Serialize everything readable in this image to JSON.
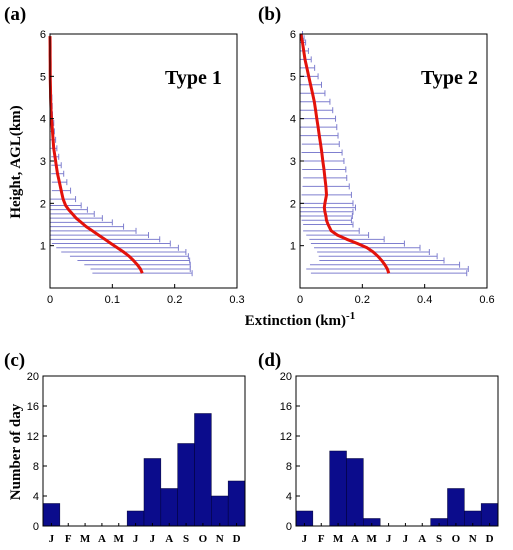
{
  "chart_data": [
    {
      "panel": "(a)",
      "type": "line",
      "title": "Type 1",
      "xlim": [
        0,
        0.3
      ],
      "ylim": [
        0,
        6
      ],
      "xticks": [
        "0",
        "0.1",
        "0.2",
        "0.3"
      ],
      "yticks": [
        "1",
        "2",
        "3",
        "4",
        "5",
        "6"
      ],
      "x": [
        0.148,
        0.145,
        0.14,
        0.134,
        0.127,
        0.118,
        0.108,
        0.098,
        0.088,
        0.078,
        0.068,
        0.058,
        0.05,
        0.042,
        0.036,
        0.03,
        0.025,
        0.021,
        0.018,
        0.015,
        0.012,
        0.01,
        0.008,
        0.006,
        0.005,
        0.004,
        0.003,
        0.002,
        0.0015,
        0.001,
        0.0008,
        0.0005,
        0.0004,
        0.0003,
        0.0002,
        0.0001,
        0.0
      ],
      "y": [
        0.35,
        0.45,
        0.55,
        0.65,
        0.75,
        0.85,
        0.95,
        1.05,
        1.15,
        1.25,
        1.35,
        1.45,
        1.55,
        1.65,
        1.75,
        1.85,
        1.95,
        2.1,
        2.3,
        2.5,
        2.7,
        2.9,
        3.1,
        3.3,
        3.5,
        3.7,
        3.9,
        4.1,
        4.3,
        4.5,
        4.7,
        4.9,
        5.1,
        5.3,
        5.5,
        5.7,
        5.95
      ],
      "err": [
        0.08,
        0.08,
        0.085,
        0.09,
        0.095,
        0.1,
        0.098,
        0.095,
        0.088,
        0.08,
        0.07,
        0.06,
        0.05,
        0.042,
        0.035,
        0.03,
        0.025,
        0.02,
        0.015,
        0.012,
        0.01,
        0.008,
        0.006,
        0.005,
        0.004,
        0.003,
        0.003,
        0.002,
        0.002,
        0.002,
        0.001,
        0.001,
        0.001,
        0.001,
        0.001,
        0.001,
        0.0
      ]
    },
    {
      "panel": "(b)",
      "type": "line",
      "title": "Type 2",
      "xlim": [
        0,
        0.6
      ],
      "ylim": [
        0,
        6
      ],
      "xticks": [
        "0",
        "0.2",
        "0.4",
        "0.6"
      ],
      "yticks": [
        "1",
        "2",
        "3",
        "4",
        "5",
        "6"
      ],
      "x": [
        0.285,
        0.28,
        0.272,
        0.262,
        0.25,
        0.235,
        0.215,
        0.185,
        0.15,
        0.12,
        0.1,
        0.09,
        0.085,
        0.083,
        0.08,
        0.078,
        0.08,
        0.085,
        0.083,
        0.08,
        0.077,
        0.073,
        0.07,
        0.066,
        0.062,
        0.058,
        0.054,
        0.05,
        0.046,
        0.04,
        0.034,
        0.028,
        0.022,
        0.016,
        0.012,
        0.008,
        0.005,
        0.003
      ],
      "y": [
        0.35,
        0.45,
        0.55,
        0.65,
        0.75,
        0.85,
        0.95,
        1.05,
        1.15,
        1.25,
        1.35,
        1.5,
        1.6,
        1.7,
        1.8,
        1.9,
        2.0,
        2.2,
        2.4,
        2.6,
        2.8,
        3.0,
        3.2,
        3.4,
        3.6,
        3.8,
        4.0,
        4.2,
        4.4,
        4.6,
        4.8,
        5.0,
        5.2,
        5.4,
        5.6,
        5.8,
        5.9,
        6.0
      ],
      "err": [
        0.25,
        0.26,
        0.24,
        0.2,
        0.19,
        0.18,
        0.17,
        0.15,
        0.12,
        0.1,
        0.09,
        0.08,
        0.08,
        0.085,
        0.09,
        0.1,
        0.09,
        0.08,
        0.075,
        0.07,
        0.07,
        0.068,
        0.065,
        0.06,
        0.06,
        0.06,
        0.06,
        0.055,
        0.05,
        0.04,
        0.035,
        0.03,
        0.025,
        0.02,
        0.015,
        0.01,
        0.008,
        0.005
      ]
    },
    {
      "panel": "(c)",
      "type": "bar",
      "categories": [
        "J",
        "F",
        "M",
        "A",
        "M",
        "J",
        "J",
        "A",
        "S",
        "O",
        "N",
        "D"
      ],
      "values": [
        3,
        0,
        0,
        0,
        0,
        2,
        9,
        5,
        11,
        15,
        4,
        6
      ],
      "ylabel": "Number of day",
      "ylim": [
        0,
        20
      ],
      "yticks": [
        "0",
        "4",
        "8",
        "12",
        "16",
        "20"
      ]
    },
    {
      "panel": "(d)",
      "type": "bar",
      "categories": [
        "J",
        "F",
        "M",
        "A",
        "M",
        "J",
        "J",
        "A",
        "S",
        "O",
        "N",
        "D"
      ],
      "values": [
        2,
        0,
        10,
        9,
        1,
        0,
        0,
        0,
        1,
        5,
        2,
        3
      ],
      "ylim": [
        0,
        20
      ],
      "yticks": [
        "0",
        "4",
        "8",
        "12",
        "16",
        "20"
      ]
    }
  ],
  "labels": {
    "profile_ylabel": "Height, AGL(km)",
    "profile_xlabel": "Extinction (km)",
    "profile_xlabel_exp": "-1"
  },
  "colors": {
    "profile_line": "#e3120b",
    "error_bar": "#7f7fcf",
    "bar_fill": "#0b0c8c",
    "axis": "#000000"
  }
}
